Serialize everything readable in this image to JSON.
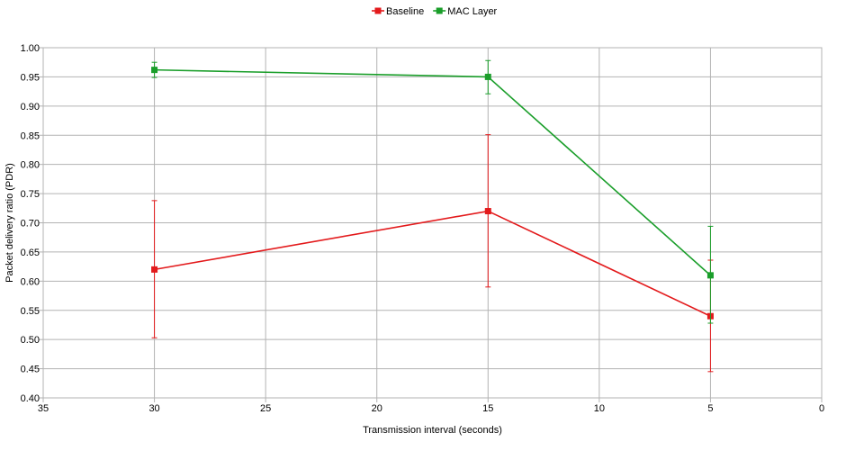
{
  "chart_data": {
    "type": "line",
    "xlabel": "Transmission interval (seconds)",
    "ylabel": "Packet delivery ratio (PDR)",
    "xlim": [
      35,
      0
    ],
    "ylim": [
      0.4,
      1.0
    ],
    "x_reversed": true,
    "x_ticks": [
      35,
      30,
      25,
      20,
      15,
      10,
      5,
      0
    ],
    "y_ticks": [
      0.4,
      0.45,
      0.5,
      0.55,
      0.6,
      0.65,
      0.7,
      0.75,
      0.8,
      0.85,
      0.9,
      0.95,
      1.0
    ],
    "y_tick_labels": [
      "0.40",
      "0.45",
      "0.50",
      "0.55",
      "0.60",
      "0.65",
      "0.70",
      "0.75",
      "0.80",
      "0.85",
      "0.90",
      "0.95",
      "1.00"
    ],
    "grid": true,
    "legend_position": "top-center",
    "series": [
      {
        "name": "Baseline",
        "color": "#e31a1c",
        "x": [
          30,
          15,
          5
        ],
        "values": [
          0.62,
          0.72,
          0.54
        ],
        "error_low": [
          0.503,
          0.59,
          0.445
        ],
        "error_high": [
          0.738,
          0.851,
          0.636
        ]
      },
      {
        "name": "MAC Layer",
        "color": "#1a9e2a",
        "x": [
          30,
          15,
          5
        ],
        "values": [
          0.962,
          0.95,
          0.61
        ],
        "error_low": [
          0.949,
          0.921,
          0.528
        ],
        "error_high": [
          0.975,
          0.978,
          0.694
        ]
      }
    ]
  }
}
